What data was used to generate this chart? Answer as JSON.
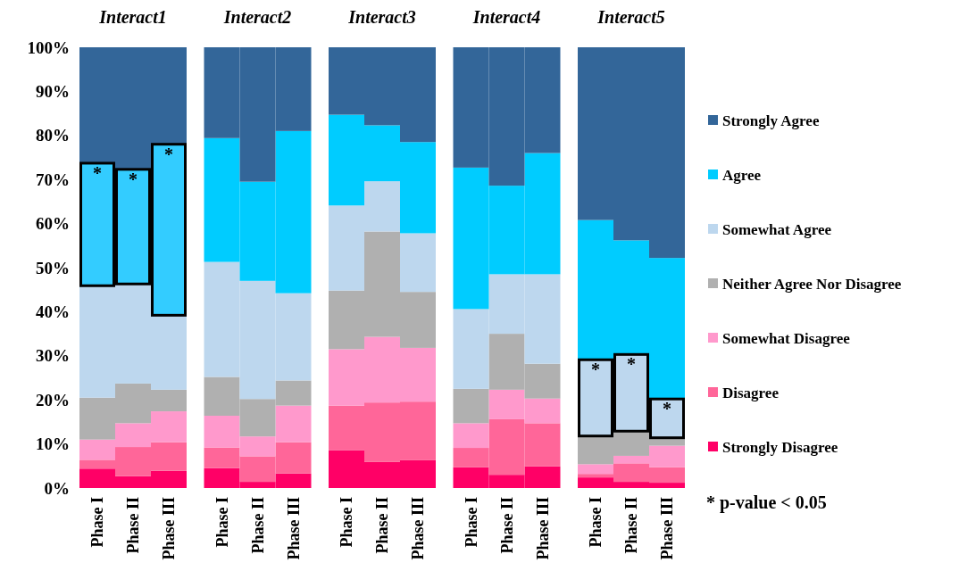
{
  "chart_data": [
    {
      "type": "bar",
      "title": "Interact1",
      "stacked": true,
      "categories": [
        "Phase I",
        "Phase II",
        "Phase III"
      ],
      "ylim": [
        0,
        100
      ],
      "yticks": [
        {
          "value": 0,
          "label": "0%"
        },
        {
          "value": 10,
          "label": "10%"
        },
        {
          "value": 20,
          "label": "20%"
        },
        {
          "value": 30,
          "label": "30%"
        },
        {
          "value": 40,
          "label": "40%"
        },
        {
          "value": 50,
          "label": "50%"
        },
        {
          "value": 60,
          "label": "60%"
        },
        {
          "value": 70,
          "label": "70%"
        },
        {
          "value": 80,
          "label": "80%"
        },
        {
          "value": 90,
          "label": "90%"
        },
        {
          "value": 100,
          "label": "100%"
        }
      ],
      "legend": false,
      "series": [
        {
          "color": "#ff0066",
          "values": [
            4.4,
            2.7,
            3.9
          ]
        },
        {
          "color": "#ff6699",
          "values": [
            2.0,
            6.6,
            6.5
          ]
        },
        {
          "color": "#ff99cc",
          "values": [
            4.6,
            5.4,
            7.0
          ]
        },
        {
          "color": "#b0b0b0",
          "values": [
            9.5,
            9.0,
            4.9
          ]
        },
        {
          "color": "#bdd7ee",
          "values": [
            25.4,
            22.6,
            16.9
          ]
        },
        {
          "color": "#33ccff",
          "values": [
            27.8,
            26.0,
            38.8
          ]
        },
        {
          "color": "#336699",
          "values": [
            26.3,
            27.7,
            22.0
          ]
        }
      ],
      "annotations": [
        {
          "text": "*",
          "x": "Phase I",
          "y": 73.7
        },
        {
          "text": "*",
          "x": "Phase II",
          "y": 72.3
        },
        {
          "text": "*",
          "x": "Phase III",
          "y": 78.0
        }
      ]
    },
    {
      "type": "bar",
      "title": "Interact2",
      "stacked": true,
      "categories": [
        "Phase I",
        "Phase II",
        "Phase III"
      ],
      "ylim": [
        0,
        100
      ],
      "tick_labels": "x",
      "legend": false,
      "series": [
        {
          "color": "#ff0066",
          "values": [
            4.5,
            1.4,
            3.3
          ]
        },
        {
          "color": "#ff6699",
          "values": [
            4.7,
            5.8,
            7.1
          ]
        },
        {
          "color": "#ff99cc",
          "values": [
            7.2,
            4.5,
            8.3
          ]
        },
        {
          "color": "#b0b0b0",
          "values": [
            8.8,
            8.5,
            5.7
          ]
        },
        {
          "color": "#bdd7ee",
          "values": [
            26.1,
            26.8,
            19.8
          ]
        },
        {
          "color": "#00ccff",
          "values": [
            28.1,
            22.5,
            36.8
          ]
        },
        {
          "color": "#336699",
          "values": [
            20.6,
            30.5,
            19.0
          ]
        }
      ]
    },
    {
      "type": "bar",
      "title": "Interact3",
      "stacked": true,
      "categories": [
        "Phase I",
        "Phase II",
        "Phase III"
      ],
      "ylim": [
        0,
        100
      ],
      "tick_labels": "x",
      "legend": false,
      "series": [
        {
          "color": "#ff0066",
          "values": [
            8.6,
            5.9,
            6.3
          ]
        },
        {
          "color": "#ff6699",
          "values": [
            10.1,
            13.5,
            13.3
          ]
        },
        {
          "color": "#ff99cc",
          "values": [
            12.8,
            14.9,
            12.2
          ]
        },
        {
          "color": "#b0b0b0",
          "values": [
            13.3,
            23.9,
            12.7
          ]
        },
        {
          "color": "#bdd7ee",
          "values": [
            19.3,
            11.4,
            13.3
          ]
        },
        {
          "color": "#00ccff",
          "values": [
            20.6,
            12.7,
            20.7
          ]
        },
        {
          "color": "#336699",
          "values": [
            15.3,
            17.7,
            21.5
          ]
        }
      ]
    },
    {
      "type": "bar",
      "title": "Interact4",
      "stacked": true,
      "categories": [
        "Phase I",
        "Phase II",
        "Phase III"
      ],
      "ylim": [
        0,
        100
      ],
      "tick_labels": "x",
      "legend": false,
      "series": [
        {
          "color": "#ff0066",
          "values": [
            4.7,
            3.0,
            4.9
          ]
        },
        {
          "color": "#ff6699",
          "values": [
            4.4,
            12.6,
            9.8
          ]
        },
        {
          "color": "#ff99cc",
          "values": [
            5.6,
            6.7,
            5.6
          ]
        },
        {
          "color": "#b0b0b0",
          "values": [
            7.8,
            12.7,
            7.9
          ]
        },
        {
          "color": "#bdd7ee",
          "values": [
            18.1,
            13.5,
            20.3
          ]
        },
        {
          "color": "#00ccff",
          "values": [
            32.1,
            20.1,
            27.5
          ]
        },
        {
          "color": "#336699",
          "values": [
            27.3,
            31.4,
            24.0
          ]
        }
      ]
    },
    {
      "type": "bar",
      "title": "Interact5",
      "stacked": true,
      "categories": [
        "Phase I",
        "Phase II",
        "Phase III"
      ],
      "ylim": [
        0,
        100
      ],
      "tick_labels": "x",
      "legend": "right",
      "series": [
        {
          "name": "Strongly Disagree",
          "color": "#ff0066",
          "values": [
            2.4,
            1.4,
            1.2
          ]
        },
        {
          "name": "Disagree",
          "color": "#ff6699",
          "values": [
            0.8,
            4.2,
            3.5
          ]
        },
        {
          "name": "Somewhat Disagree",
          "color": "#ff99cc",
          "values": [
            2.2,
            1.7,
            4.9
          ]
        },
        {
          "name": "Neither Agree Nor Disagree",
          "color": "#b0b0b0",
          "values": [
            6.4,
            5.6,
            1.8
          ]
        },
        {
          "name": "Somewhat Agree",
          "color": "#bdd7ee",
          "values": [
            17.3,
            17.4,
            8.8
          ]
        },
        {
          "name": "Agree",
          "color": "#00ccff",
          "values": [
            31.7,
            25.9,
            32.0
          ]
        },
        {
          "name": "Strongly Agree",
          "color": "#336699",
          "values": [
            39.2,
            43.8,
            47.8
          ]
        }
      ],
      "annotations": [
        {
          "text": "*",
          "x": "Phase I",
          "y": 29.1
        },
        {
          "text": "*",
          "x": "Phase II",
          "y": 30.3
        },
        {
          "text": "*",
          "x": "Phase III",
          "y": 20.2
        },
        "* p-value < 0.05"
      ]
    }
  ]
}
